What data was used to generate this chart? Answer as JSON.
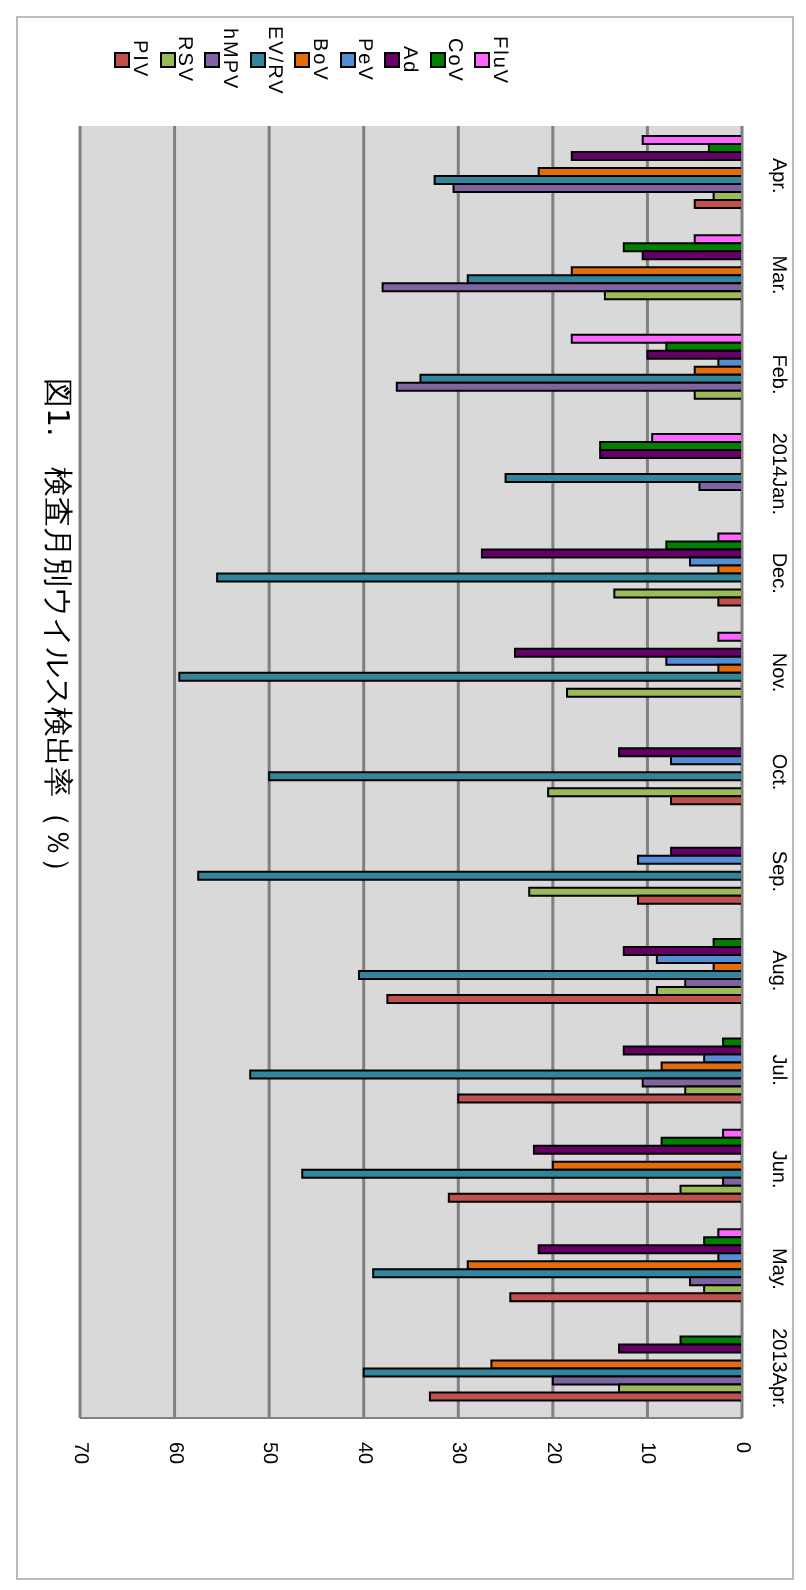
{
  "chart_data": {
    "type": "bar",
    "orientation": "horizontal",
    "title": "図1.　検査月別ウイルス検出率（％）",
    "categories": [
      "Apr.",
      "Mar.",
      "Feb.",
      "2014Jan.",
      "Dec.",
      "Nov.",
      "Oct.",
      "Sep.",
      "Aug.",
      "Jul.",
      "Jun.",
      "May.",
      "2013Apr."
    ],
    "series": [
      {
        "name": "PIV",
        "color": "#c0504d",
        "values": [
          5,
          0,
          0,
          0,
          2.5,
          0,
          7.5,
          11,
          37.5,
          30,
          31,
          24.5,
          33
        ]
      },
      {
        "name": "RSV",
        "color": "#9bbb59",
        "values": [
          3,
          14.5,
          5,
          0,
          13.5,
          18.5,
          20.5,
          22.5,
          9,
          6,
          6.5,
          4,
          13
        ]
      },
      {
        "name": "hMPV",
        "color": "#8064a2",
        "values": [
          30.5,
          38,
          36.5,
          4.5,
          0,
          0,
          0,
          0,
          6,
          10.5,
          2,
          5.5,
          20
        ]
      },
      {
        "name": "EV/RV",
        "color": "#31859c",
        "values": [
          32.5,
          29,
          34,
          25,
          55.5,
          59.5,
          50,
          57.5,
          40.5,
          52,
          46.5,
          39,
          40
        ]
      },
      {
        "name": "BoV",
        "color": "#e46c0a",
        "values": [
          21.5,
          18,
          5,
          0,
          2.5,
          2.5,
          0,
          0,
          3,
          8.5,
          20,
          29,
          26.5
        ]
      },
      {
        "name": "PeV",
        "color": "#558ed5",
        "values": [
          0,
          0,
          2.5,
          0,
          5.5,
          8,
          7.5,
          11,
          9,
          4,
          0,
          2.5,
          0
        ]
      },
      {
        "name": "Ad",
        "color": "#660066",
        "values": [
          18,
          10.5,
          10,
          15,
          27.5,
          24,
          13,
          7.5,
          12.5,
          12.5,
          22,
          21.5,
          13
        ]
      },
      {
        "name": "CoV",
        "color": "#008000",
        "values": [
          3.5,
          12.5,
          8,
          15,
          8,
          0,
          0,
          0,
          3,
          2,
          8.5,
          4,
          6.5
        ]
      },
      {
        "name": "FluV",
        "color": "#ff66ff",
        "values": [
          10.5,
          5,
          18,
          9.5,
          2.5,
          2.5,
          0,
          0,
          0,
          0,
          2,
          2.5,
          0
        ]
      }
    ],
    "xlim": [
      70,
      0
    ],
    "xticks": [
      70,
      60,
      50,
      40,
      30,
      20,
      10,
      0
    ],
    "grid": "x",
    "legend": "top left"
  }
}
